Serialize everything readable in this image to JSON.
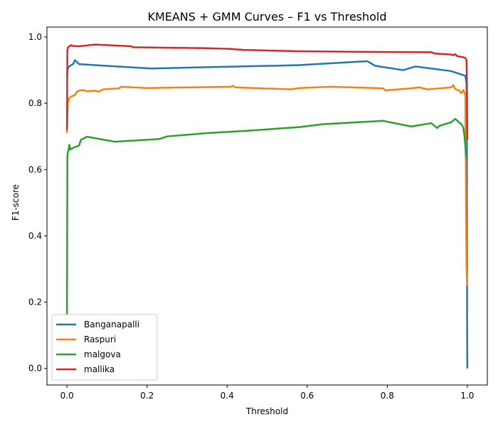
{
  "chart_data": {
    "type": "line",
    "title": "KMEANS + GMM Curves – F1 vs Threshold",
    "xlabel": "Threshold",
    "ylabel": "F1-score",
    "xlim": [
      -0.05,
      1.05
    ],
    "ylim": [
      -0.05,
      1.03
    ],
    "xticks": [
      0.0,
      0.2,
      0.4,
      0.6,
      0.8,
      1.0
    ],
    "xtick_labels": [
      "0.0",
      "0.2",
      "0.4",
      "0.6",
      "0.8",
      "1.0"
    ],
    "yticks": [
      0.0,
      0.2,
      0.4,
      0.6,
      0.8,
      1.0
    ],
    "ytick_labels": [
      "0.0",
      "0.2",
      "0.4",
      "0.6",
      "0.8",
      "1.0"
    ],
    "grid": false,
    "legend": {
      "position": "lower-left"
    },
    "series": [
      {
        "name": "Banganapalli",
        "color": "#1f77b4",
        "x": [
          0.0,
          0.002,
          0.005,
          0.01,
          0.015,
          0.02,
          0.03,
          0.21,
          0.58,
          0.75,
          0.77,
          0.84,
          0.87,
          0.96,
          0.99,
          0.995,
          0.998,
          0.999,
          0.9995,
          1.0
        ],
        "y": [
          0.88,
          0.905,
          0.91,
          0.915,
          0.918,
          0.93,
          0.918,
          0.905,
          0.915,
          0.927,
          0.913,
          0.9,
          0.911,
          0.897,
          0.885,
          0.883,
          0.86,
          0.7,
          0.13,
          0.0
        ]
      },
      {
        "name": "Raspuri",
        "color": "#ff7f0e",
        "x": [
          0.0,
          0.002,
          0.005,
          0.01,
          0.02,
          0.025,
          0.03,
          0.04,
          0.05,
          0.07,
          0.08,
          0.09,
          0.1,
          0.13,
          0.135,
          0.2,
          0.41,
          0.415,
          0.42,
          0.56,
          0.58,
          0.66,
          0.79,
          0.795,
          0.86,
          0.88,
          0.9,
          0.95,
          0.96,
          0.965,
          0.97,
          0.98,
          0.985,
          0.99,
          0.995,
          0.998,
          1.0
        ],
        "y": [
          0.71,
          0.8,
          0.815,
          0.82,
          0.825,
          0.835,
          0.838,
          0.84,
          0.836,
          0.838,
          0.835,
          0.842,
          0.843,
          0.845,
          0.85,
          0.846,
          0.85,
          0.853,
          0.848,
          0.842,
          0.846,
          0.85,
          0.845,
          0.839,
          0.845,
          0.848,
          0.842,
          0.847,
          0.848,
          0.855,
          0.843,
          0.838,
          0.83,
          0.84,
          0.825,
          0.3,
          0.25
        ]
      },
      {
        "name": "malgova",
        "color": "#2ca02c",
        "x": [
          0.0,
          0.001,
          0.002,
          0.004,
          0.006,
          0.008,
          0.01,
          0.02,
          0.03,
          0.035,
          0.05,
          0.12,
          0.23,
          0.25,
          0.35,
          0.45,
          0.58,
          0.64,
          0.79,
          0.86,
          0.91,
          0.925,
          0.93,
          0.96,
          0.97,
          0.98,
          0.985,
          0.99,
          0.993,
          0.995,
          0.997,
          1.0
        ],
        "y": [
          0.16,
          0.64,
          0.65,
          0.66,
          0.675,
          0.66,
          0.662,
          0.668,
          0.672,
          0.69,
          0.699,
          0.684,
          0.692,
          0.7,
          0.71,
          0.717,
          0.728,
          0.737,
          0.747,
          0.73,
          0.74,
          0.725,
          0.732,
          0.743,
          0.753,
          0.742,
          0.737,
          0.727,
          0.7,
          0.67,
          0.64,
          0.63
        ]
      },
      {
        "name": "mallika",
        "color": "#d62728",
        "x": [
          0.0,
          0.001,
          0.003,
          0.006,
          0.01,
          0.015,
          0.03,
          0.07,
          0.16,
          0.165,
          0.35,
          0.41,
          0.44,
          0.58,
          0.75,
          0.91,
          0.92,
          0.96,
          0.965,
          0.97,
          0.975,
          0.98,
          0.99,
          0.995,
          0.998,
          0.999,
          1.0
        ],
        "y": [
          0.72,
          0.96,
          0.97,
          0.972,
          0.975,
          0.973,
          0.972,
          0.977,
          0.972,
          0.969,
          0.966,
          0.964,
          0.961,
          0.957,
          0.955,
          0.954,
          0.95,
          0.947,
          0.945,
          0.948,
          0.942,
          0.941,
          0.939,
          0.937,
          0.93,
          0.86,
          0.69
        ]
      }
    ]
  }
}
